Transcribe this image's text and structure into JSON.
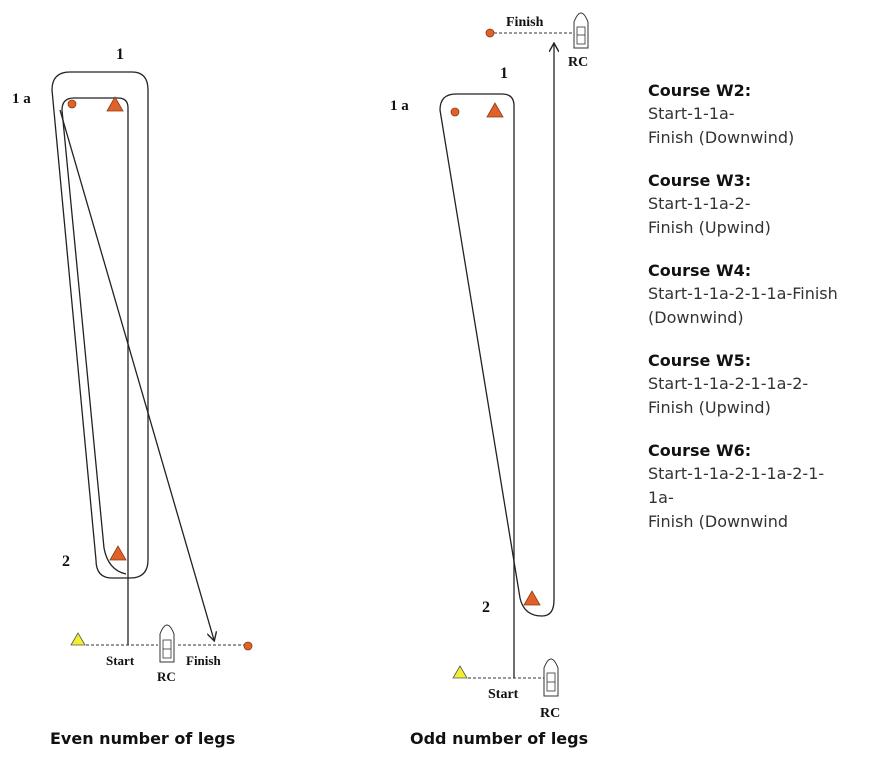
{
  "left_diagram": {
    "mark_1_label": "1",
    "mark_1a_label": "1 a",
    "mark_2_label": "2",
    "start_label": "Start",
    "finish_label": "Finish",
    "rc_label": "RC",
    "caption": "Even number of legs"
  },
  "right_diagram": {
    "mark_1_label": "1",
    "mark_1a_label": "1 a",
    "mark_2_label": "2",
    "start_label": "Start",
    "finish_label": "Finish",
    "rc_label": "RC",
    "caption": "Odd number of legs"
  },
  "colors": {
    "mark_orange": "#e0622a",
    "start_yellow": "#f0ee30",
    "line": "#222222"
  },
  "courses": [
    {
      "title": "Course W2:",
      "desc": "Start-1-1a-\nFinish (Downwind)"
    },
    {
      "title": "Course W3:",
      "desc": " Start-1-1a-2-\nFinish (Upwind)"
    },
    {
      "title": "Course W4:",
      "desc": "Start-1-1a-2-1-1a-Finish\n(Downwind)"
    },
    {
      "title": "Course W5:",
      "desc": "Start-1-1a-2-1-1a-2-\nFinish (Upwind)"
    },
    {
      "title": "Course W6:",
      "desc": "Start-1-1a-2-1-1a-2-1-\n1a-\nFinish (Downwind"
    }
  ]
}
